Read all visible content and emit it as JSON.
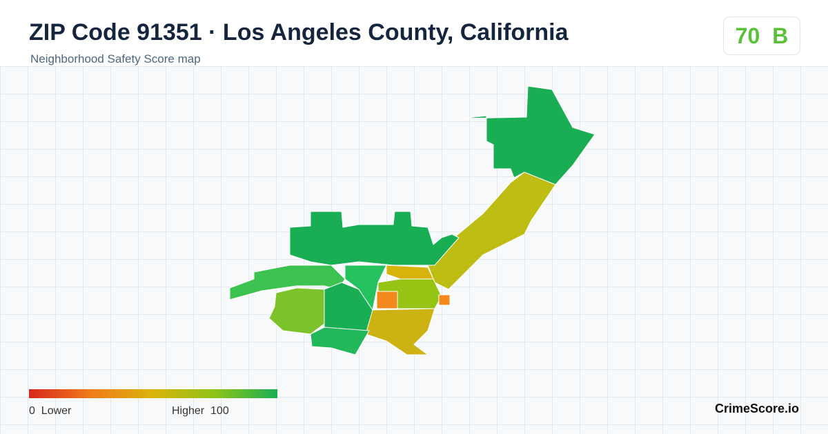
{
  "header": {
    "title": "ZIP Code 91351 · Los Angeles County, California",
    "subtitle": "Neighborhood Safety Score map"
  },
  "score": {
    "value": 70,
    "grade": "B"
  },
  "legend": {
    "min": 0,
    "min_label": "Lower",
    "max_label": "Higher",
    "max": 100
  },
  "brand": "CrimeScore.io"
}
